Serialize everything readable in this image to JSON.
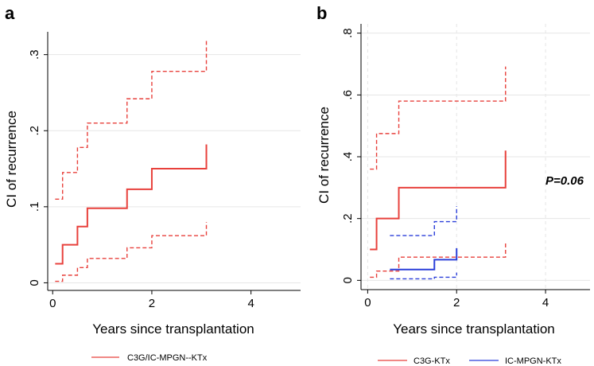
{
  "chart_data": [
    {
      "panel": "a",
      "type": "line",
      "subtype": "step",
      "xlabel": "Years since transplantation",
      "ylabel": "CI of recurrence",
      "xlim": [
        -0.1,
        5
      ],
      "ylim": [
        -0.01,
        0.33
      ],
      "xticks": [
        0,
        2,
        4
      ],
      "xtick_labels": [
        "0",
        "2",
        "4"
      ],
      "yticks": [
        0,
        0.1,
        0.2,
        0.3
      ],
      "ytick_labels": [
        "0",
        ".1",
        ".2",
        ".3"
      ],
      "grid": true,
      "series": [
        {
          "name": "C3G/IC-MPGN--KTx",
          "role": "estimate",
          "color": "#e8413c",
          "style": "solid",
          "x": [
            0.05,
            0.2,
            0.5,
            0.7,
            1.5,
            2.0,
            3.1
          ],
          "values": [
            0.025,
            0.05,
            0.074,
            0.098,
            0.123,
            0.15,
            0.182
          ]
        },
        {
          "name": "Upper 95% CI",
          "role": "upper",
          "color": "#e8413c",
          "style": "dashed",
          "x": [
            0.05,
            0.2,
            0.5,
            0.7,
            1.5,
            2.0,
            3.1
          ],
          "values": [
            0.11,
            0.145,
            0.178,
            0.21,
            0.242,
            0.278,
            0.318
          ]
        },
        {
          "name": "Lower 95% CI",
          "role": "lower",
          "color": "#e8413c",
          "style": "dashed",
          "x": [
            0.05,
            0.2,
            0.5,
            0.7,
            1.5,
            2.0,
            3.1
          ],
          "values": [
            0.002,
            0.01,
            0.02,
            0.032,
            0.046,
            0.062,
            0.08
          ]
        }
      ],
      "legend": [
        {
          "label": "C3G/IC-MPGN--KTx",
          "color": "#e8413c"
        }
      ]
    },
    {
      "panel": "b",
      "type": "line",
      "subtype": "step",
      "xlabel": "Years since transplantation",
      "ylabel": "CI of recurrence",
      "xlim": [
        -0.15,
        5
      ],
      "ylim": [
        -0.03,
        0.83
      ],
      "xticks": [
        0,
        2,
        4
      ],
      "xtick_labels": [
        "0",
        "2",
        "4"
      ],
      "yticks": [
        0,
        0.2,
        0.4,
        0.6,
        0.8
      ],
      "ytick_labels": [
        "0",
        ".2",
        ".4",
        ".6",
        ".8"
      ],
      "grid": true,
      "annotation": "P=0.06",
      "series": [
        {
          "name": "C3G-KTx",
          "role": "estimate",
          "color": "#e8413c",
          "style": "solid",
          "x": [
            0.05,
            0.2,
            0.7,
            3.1
          ],
          "values": [
            0.1,
            0.2,
            0.3,
            0.42
          ]
        },
        {
          "name": "C3G-KTx upper 95% CI",
          "role": "upper",
          "color": "#e8413c",
          "style": "dashed",
          "x": [
            0.05,
            0.2,
            0.7,
            3.1
          ],
          "values": [
            0.36,
            0.475,
            0.58,
            0.692
          ]
        },
        {
          "name": "C3G-KTx lower 95% CI",
          "role": "lower",
          "color": "#e8413c",
          "style": "dashed",
          "x": [
            0.05,
            0.2,
            0.7,
            3.1
          ],
          "values": [
            0.01,
            0.03,
            0.075,
            0.125
          ]
        },
        {
          "name": "IC-MPGN-KTx",
          "role": "estimate",
          "color": "#2b3fd9",
          "style": "solid",
          "x": [
            0.5,
            1.5,
            2.0
          ],
          "values": [
            0.035,
            0.067,
            0.104
          ]
        },
        {
          "name": "IC-MPGN-KTx upper 95% CI",
          "role": "upper",
          "color": "#2b3fd9",
          "style": "dashed",
          "x": [
            0.5,
            1.5,
            2.0
          ],
          "values": [
            0.145,
            0.19,
            0.24
          ]
        },
        {
          "name": "IC-MPGN-KTx lower 95% CI",
          "role": "lower",
          "color": "#2b3fd9",
          "style": "dashed",
          "x": [
            0.5,
            1.5,
            2.0
          ],
          "values": [
            0.005,
            0.01,
            0.025
          ]
        }
      ],
      "legend": [
        {
          "label": "C3G-KTx",
          "color": "#e8413c"
        },
        {
          "label": "IC-MPGN-KTx",
          "color": "#2b3fd9"
        }
      ]
    }
  ]
}
